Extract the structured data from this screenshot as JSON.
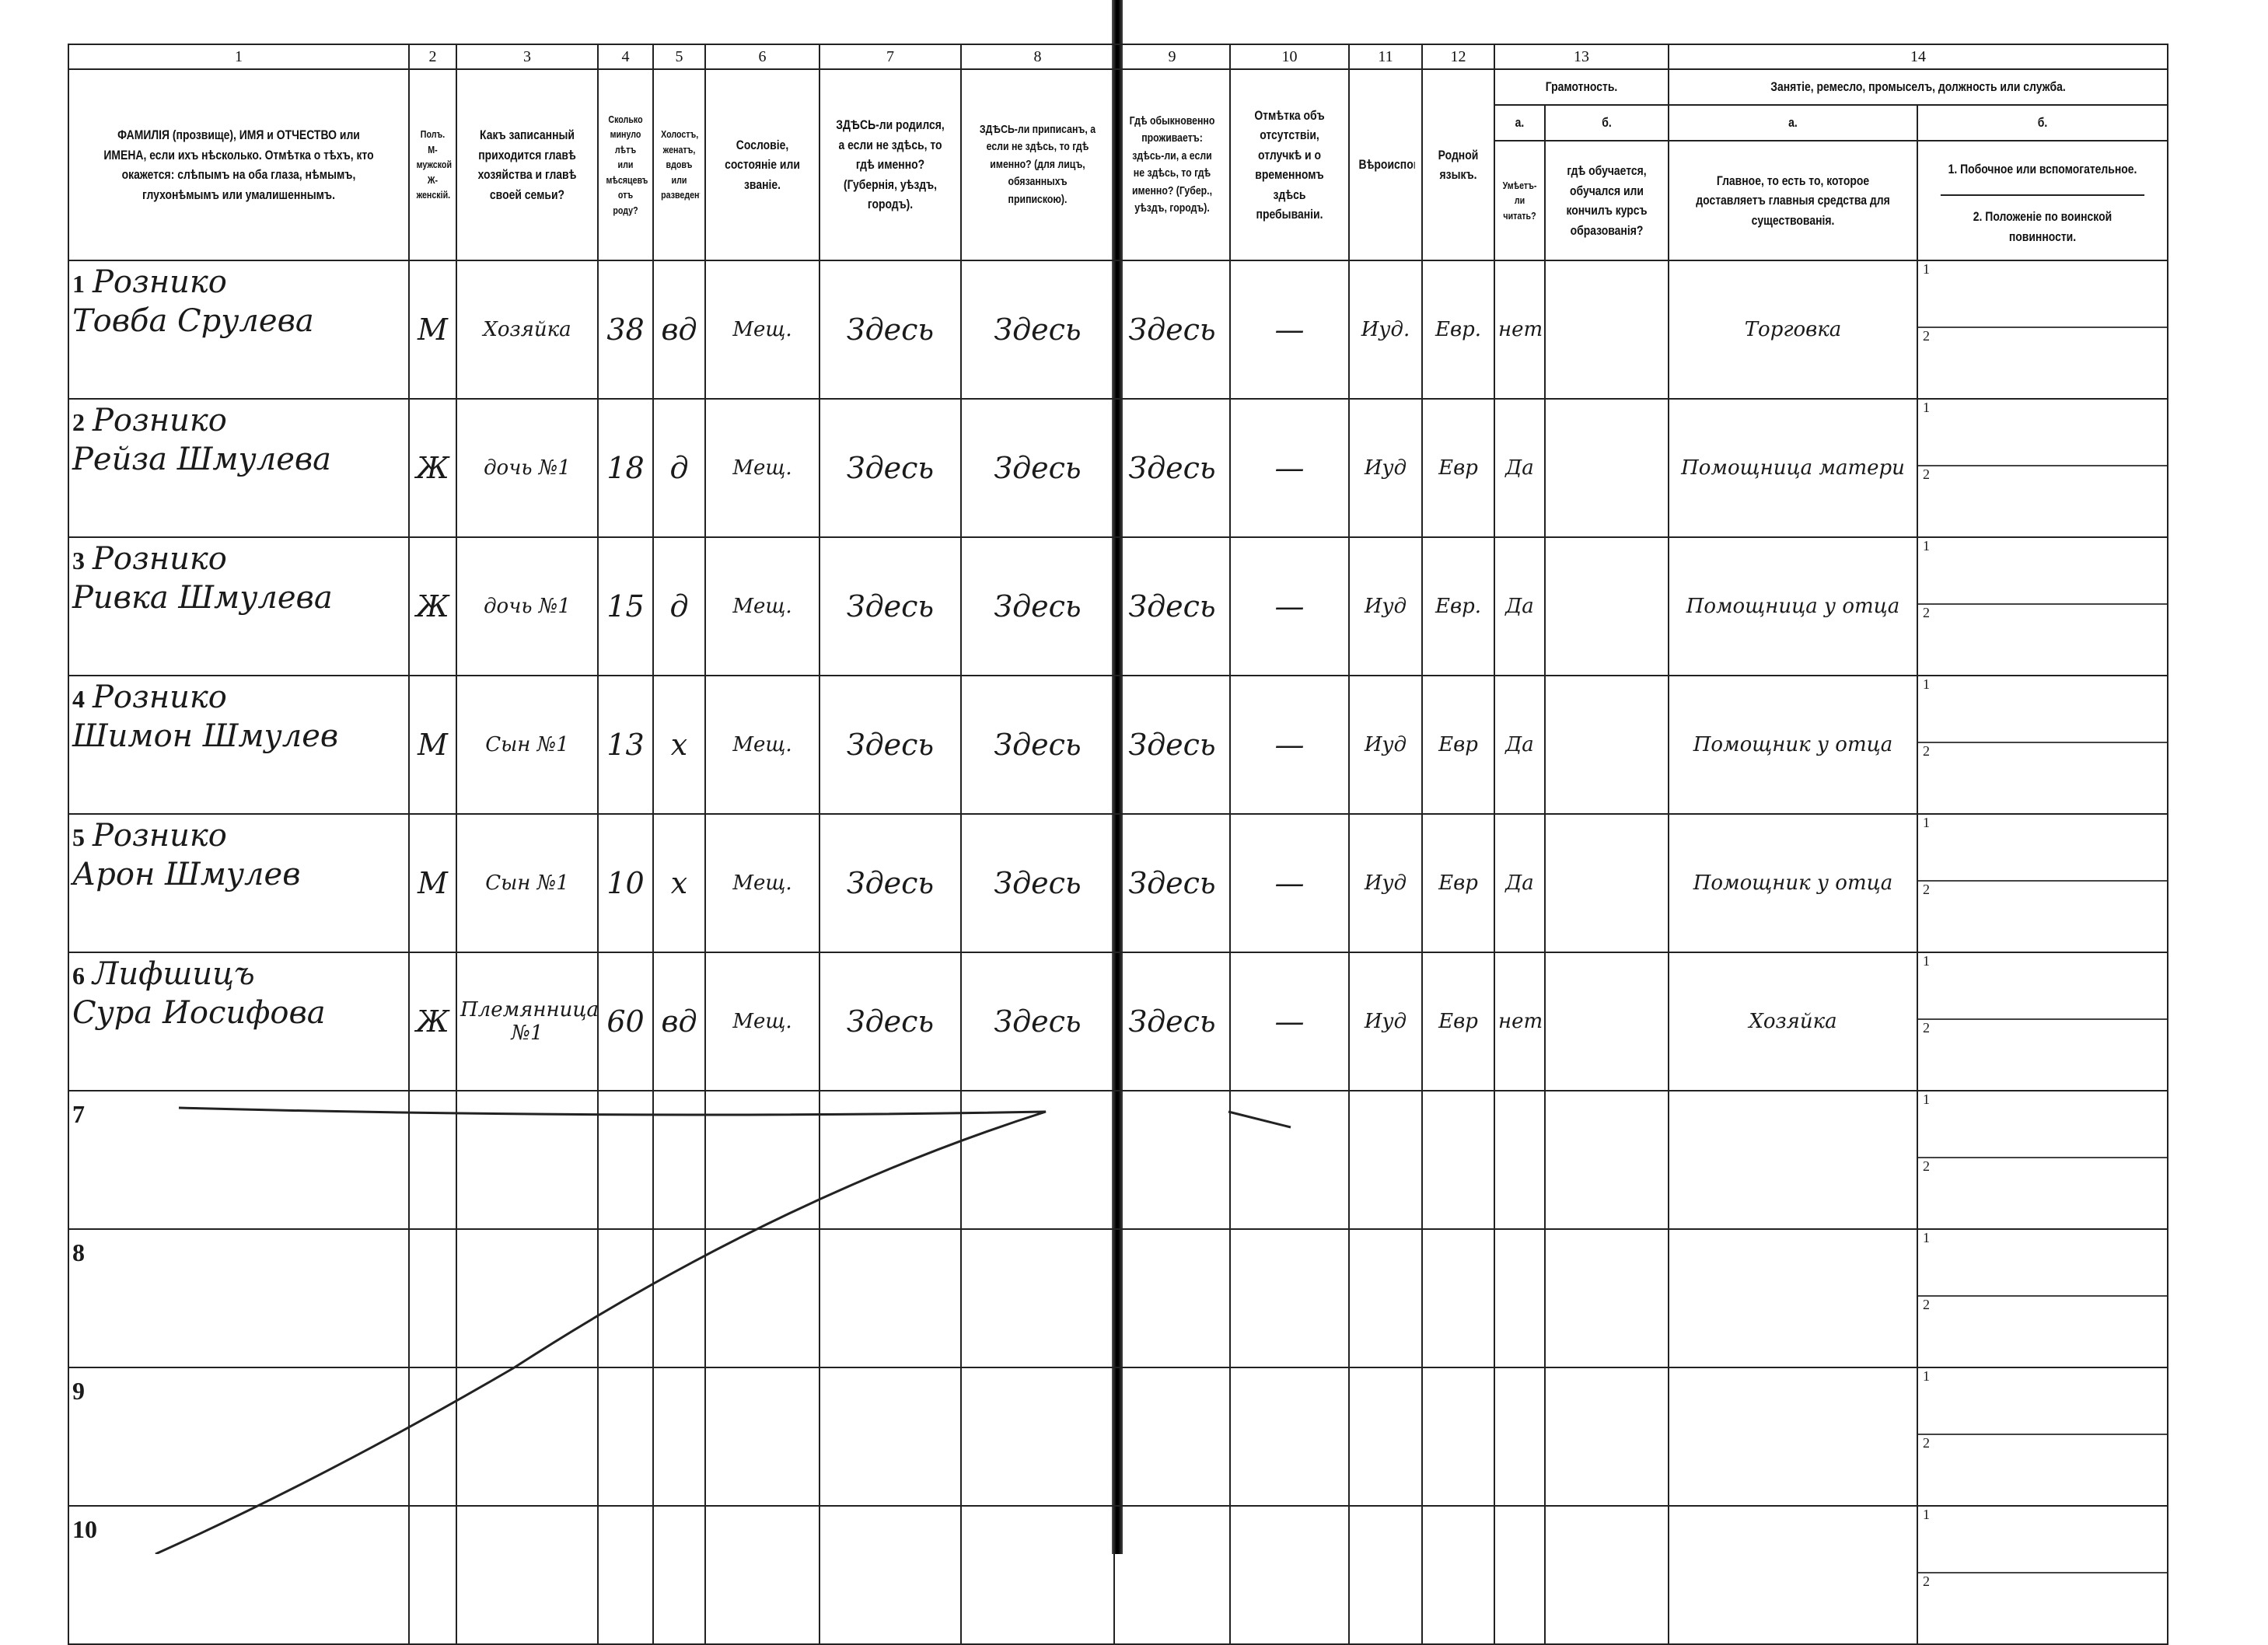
{
  "column_numbers": [
    "1",
    "2",
    "3",
    "4",
    "5",
    "6",
    "7",
    "8",
    "9",
    "10",
    "11",
    "12",
    "13",
    "14"
  ],
  "headers": {
    "c1": "ФАМИЛІЯ (прозвище), ИМЯ и ОТЧЕСТВО или ИМЕНА, если ихъ нѣсколько. Отмѣтка о тѣхъ, кто окажется: слѣпымъ на оба глаза, нѣмымъ, глухонѣмымъ или умалишеннымъ.",
    "c2": "Полъ. М-мужской. Ж-женскій.",
    "c3": "Какъ записанный приходится главѣ хозяйства и главѣ своей семьи?",
    "c4": "Сколько минуло лѣтъ или мѣсяцевъ отъ роду?",
    "c5": "Холостъ, женатъ, вдовъ или разведенъ.",
    "c6": "Сословіе, состояніе или званіе.",
    "c7": "ЗДѢСЬ-ли родился, а если не здѣсь, то гдѣ именно? (Губернія, уѣздъ, городъ).",
    "c8": "ЗДѢСЬ-ли приписанъ, а если не здѣсь, то гдѣ именно? (для лицъ, обязанныхъ припискою).",
    "c9": "Гдѣ обыкновенно проживаетъ: здѣсь-ли, а если не здѣсь, то гдѣ именно? (Губер., уѣздъ, городъ).",
    "c10": "Отмѣтка объ отсутствіи, отлучкѣ и о временномъ здѣсь пребываніи.",
    "c11": "Вѣроисповѣданіе.",
    "c12": "Родной языкъ.",
    "c13": "Грамотность.",
    "c13a_label": "а.",
    "c13a": "Умѣетъ-ли читать?",
    "c13b_label": "б.",
    "c13b": "гдѣ обучается, обучался или кончилъ курсъ образованія?",
    "c14": "Занятіе, ремесло, промыселъ, должность или служба.",
    "c14a_label": "а.",
    "c14a": "Главное, то есть то, которое доставляетъ главныя средства для существованія.",
    "c14b_label": "б.",
    "c14b1": "1. Побочное или вспомогательное.",
    "c14b2": "2. Положеніе по воинской повинности."
  },
  "sub_labels": [
    "1",
    "2"
  ],
  "rows": [
    {
      "n": "1",
      "surname": "Рознико",
      "given": "Товба Срулева",
      "sex": "М",
      "relation": "Хозяйка",
      "age": "38",
      "marital": "вд",
      "estate": "Мещ.",
      "born": "Здесь",
      "registered": "Здесь",
      "resides": "Здесь",
      "absence": "—",
      "religion": "Иуд.",
      "language": "Евр.",
      "reads": "нет",
      "schooling": "",
      "occupation": "Торговка",
      "side1": "",
      "side2": ""
    },
    {
      "n": "2",
      "surname": "Рознико",
      "given": "Рейза Шмулева",
      "sex": "Ж",
      "relation": "дочь №1",
      "age": "18",
      "marital": "д",
      "estate": "Мещ.",
      "born": "Здесь",
      "registered": "Здесь",
      "resides": "Здесь",
      "absence": "—",
      "religion": "Иуд",
      "language": "Евр",
      "reads": "Да",
      "schooling": "",
      "occupation": "Помощница матери",
      "side1": "",
      "side2": ""
    },
    {
      "n": "3",
      "surname": "Рознико",
      "given": "Ривка Шмулева",
      "sex": "Ж",
      "relation": "дочь №1",
      "age": "15",
      "marital": "д",
      "estate": "Мещ.",
      "born": "Здесь",
      "registered": "Здесь",
      "resides": "Здесь",
      "absence": "—",
      "religion": "Иуд",
      "language": "Евр.",
      "reads": "Да",
      "schooling": "",
      "occupation": "Помощница у отца",
      "side1": "",
      "side2": ""
    },
    {
      "n": "4",
      "surname": "Рознико",
      "given": "Шимон Шмулев",
      "sex": "М",
      "relation": "Сын №1",
      "age": "13",
      "marital": "х",
      "estate": "Мещ.",
      "born": "Здесь",
      "registered": "Здесь",
      "resides": "Здесь",
      "absence": "—",
      "religion": "Иуд",
      "language": "Евр",
      "reads": "Да",
      "schooling": "",
      "occupation": "Помощник у отца",
      "side1": "",
      "side2": ""
    },
    {
      "n": "5",
      "surname": "Рознико",
      "given": "Арон Шмулев",
      "sex": "М",
      "relation": "Сын №1",
      "age": "10",
      "marital": "х",
      "estate": "Мещ.",
      "born": "Здесь",
      "registered": "Здесь",
      "resides": "Здесь",
      "absence": "—",
      "religion": "Иуд",
      "language": "Евр",
      "reads": "Да",
      "schooling": "",
      "occupation": "Помощник у отца",
      "side1": "",
      "side2": ""
    },
    {
      "n": "6",
      "surname": "Лифшицъ",
      "given": "Сура Иосифова",
      "sex": "Ж",
      "relation": "Племянница №1",
      "age": "60",
      "marital": "вд",
      "estate": "Мещ.",
      "born": "Здесь",
      "registered": "Здесь",
      "resides": "Здесь",
      "absence": "—",
      "religion": "Иуд",
      "language": "Евр",
      "reads": "нет",
      "schooling": "",
      "occupation": "Хозяйка",
      "side1": "",
      "side2": ""
    },
    {
      "n": "7"
    },
    {
      "n": "8"
    },
    {
      "n": "9"
    },
    {
      "n": "10"
    }
  ]
}
